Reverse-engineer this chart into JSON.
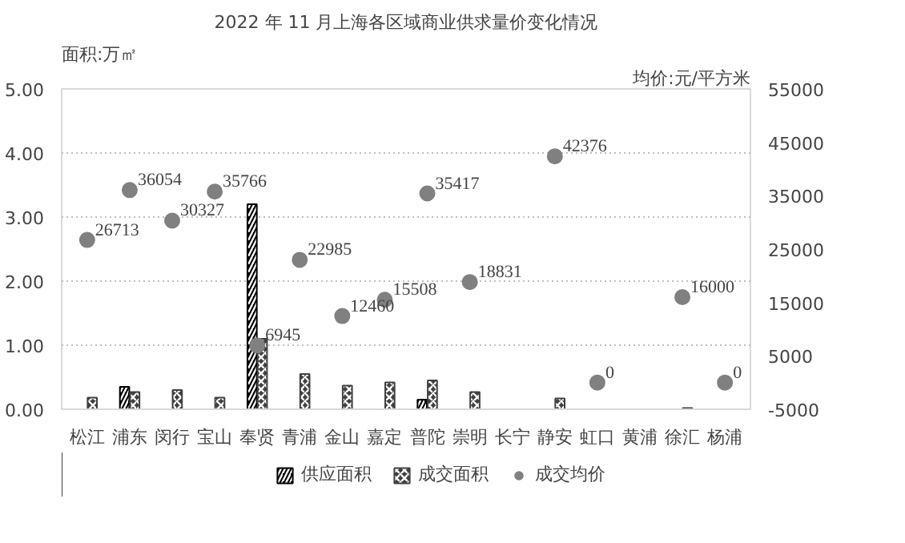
{
  "chart_data": {
    "type": "bar",
    "title": "2022 年 11 月上海各区域商业供求量价变化情况",
    "ylabel": "面积:万㎡",
    "y2label": "均价:元/平方米",
    "categories": [
      "松江",
      "浦东",
      "闵行",
      "宝山",
      "奉贤",
      "青浦",
      "金山",
      "嘉定",
      "普陀",
      "崇明",
      "长宁",
      "静安",
      "虹口",
      "黄浦",
      "徐汇",
      "杨浦"
    ],
    "series": [
      {
        "name": "供应面积",
        "color": "#000000",
        "values": [
          0,
          0.35,
          0,
          0,
          3.2,
          0,
          0,
          0,
          0.15,
          0,
          0,
          0,
          0,
          0,
          0,
          0
        ]
      },
      {
        "name": "成交面积",
        "color": "#404040",
        "values": [
          0.18,
          0.27,
          0.3,
          0.18,
          1.1,
          0.55,
          0.37,
          0.42,
          0.45,
          0.27,
          0,
          0.17,
          0,
          0,
          0.02,
          0
        ]
      },
      {
        "name": "成交均价",
        "type": "scatter",
        "axis": "y2",
        "color": "#808080",
        "marker": "circle",
        "values": [
          26713,
          36054,
          30327,
          35766,
          6945,
          22985,
          12460,
          15508,
          35417,
          18831,
          null,
          42376,
          0,
          null,
          16000,
          0
        ],
        "value_labels": [
          "26713",
          "36054",
          "30327",
          "35766",
          "6945",
          "22985",
          "12460",
          "15508",
          "35417",
          "18831",
          null,
          "42376",
          "0",
          null,
          "16000",
          "0"
        ]
      }
    ],
    "ylim": [
      0,
      5
    ],
    "yticks": [
      {
        "value": 0,
        "label": "0.00"
      },
      {
        "value": 1,
        "label": "1.00"
      },
      {
        "value": 2,
        "label": "2.00"
      },
      {
        "value": 3,
        "label": "3.00"
      },
      {
        "value": 4,
        "label": "4.00"
      },
      {
        "value": 5,
        "label": "5.00"
      }
    ],
    "y2lim": [
      -5000,
      55000
    ],
    "y2ticks": [
      -5000,
      5000,
      15000,
      25000,
      35000,
      45000,
      55000
    ],
    "grid": "y",
    "legend": "bottom"
  }
}
